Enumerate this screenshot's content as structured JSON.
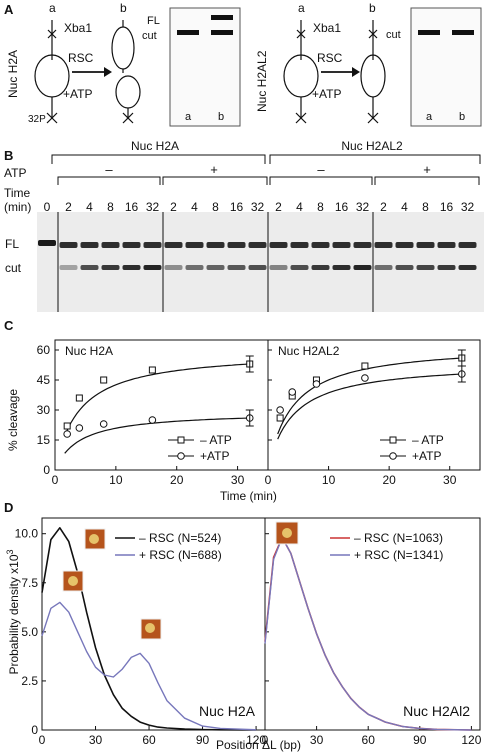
{
  "panels": {
    "A": {
      "letter": "A",
      "left": {
        "title": "Nuc H2A",
        "state_a": "a",
        "state_b": "b",
        "enzyme_top": "Xba1",
        "enzyme_mid": "RSC",
        "atp": "+ATP",
        "label_32p": "32P",
        "gel_fl": "FL",
        "gel_cut": "cut",
        "lane_a": "a",
        "lane_b": "b"
      },
      "right": {
        "title": "Nuc H2AL2",
        "state_a": "a",
        "state_b": "b",
        "enzyme_top": "Xba1",
        "enzyme_mid": "RSC",
        "atp": "+ATP",
        "gel_cut": "cut",
        "lane_a": "a",
        "lane_b": "b"
      }
    },
    "B": {
      "letter": "B",
      "group_left": "Nuc H2A",
      "group_right": "Nuc H2AL2",
      "atp_label": "ATP",
      "time_label": "Time",
      "time_unit": "(min)",
      "minus": "–",
      "plus": "+",
      "zero_time": "0",
      "times": [
        "2",
        "4",
        "8",
        "16",
        "32"
      ],
      "band_fl": "FL",
      "band_cut": "cut"
    },
    "C": {
      "letter": "C",
      "ylabel": "% cleavage",
      "xlabel": "Time (min)",
      "yticks": [
        "0",
        "15",
        "30",
        "45",
        "60"
      ],
      "xticks": [
        "0",
        "10",
        "20",
        "30"
      ],
      "legend_minus": "– ATP",
      "legend_plus": "+ATP"
    },
    "D": {
      "letter": "D",
      "ylabel": "Probability density x10",
      "ylabel_exp": "3",
      "xlabel": "Position  ΔL (bp)",
      "yticks": [
        "0",
        "2.5",
        "5.0",
        "7.5",
        "10.0"
      ],
      "xticks": [
        "0",
        "30",
        "60",
        "90",
        "120"
      ],
      "left_legend": [
        "– RSC (N=524)",
        "+ RSC (N=688)"
      ],
      "right_legend": [
        "– RSC (N=1063)",
        "+ RSC (N=1341)"
      ],
      "left_title": "Nuc H2A",
      "right_title": "Nuc H2Al2"
    }
  },
  "chart_data": [
    {
      "type": "scatter",
      "title": "Nuc H2A",
      "xlabel": "Time (min)",
      "ylabel": "% cleavage",
      "xlim": [
        0,
        35
      ],
      "ylim": [
        0,
        65
      ],
      "series": [
        {
          "name": "– ATP",
          "marker": "square",
          "x": [
            2,
            4,
            8,
            16,
            32
          ],
          "y": [
            22,
            36,
            45,
            50,
            53
          ]
        },
        {
          "name": "+ATP",
          "marker": "circle",
          "x": [
            2,
            4,
            8,
            16,
            32
          ],
          "y": [
            18,
            21,
            23,
            25,
            26
          ]
        }
      ]
    },
    {
      "type": "scatter",
      "title": "Nuc H2AL2",
      "xlabel": "Time (min)",
      "ylabel": "% cleavage",
      "xlim": [
        0,
        35
      ],
      "ylim": [
        0,
        65
      ],
      "series": [
        {
          "name": "– ATP",
          "marker": "square",
          "x": [
            2,
            4,
            8,
            16,
            32
          ],
          "y": [
            26,
            37,
            45,
            52,
            56
          ]
        },
        {
          "name": "+ATP",
          "marker": "circle",
          "x": [
            2,
            4,
            8,
            16,
            32
          ],
          "y": [
            30,
            39,
            43,
            46,
            48
          ]
        }
      ]
    },
    {
      "type": "line",
      "title": "Nuc H2A",
      "xlabel": "Position ΔL (bp)",
      "ylabel": "Probability density x10^3",
      "xlim": [
        0,
        125
      ],
      "ylim": [
        0,
        10.8
      ],
      "colors": {
        "minus": "#111111",
        "plus": "#7777bb"
      },
      "series": [
        {
          "name": "– RSC (N=524)",
          "x": [
            0,
            5,
            10,
            15,
            20,
            25,
            30,
            35,
            40,
            45,
            50,
            55,
            60,
            65,
            70,
            80,
            90,
            100,
            120
          ],
          "y": [
            7.0,
            9.7,
            10.3,
            9.6,
            8.0,
            6.0,
            4.2,
            2.8,
            1.8,
            1.1,
            0.7,
            0.4,
            0.25,
            0.15,
            0.1,
            0.05,
            0.02,
            0.01,
            0
          ]
        },
        {
          "name": "+ RSC (N=688)",
          "x": [
            0,
            5,
            10,
            15,
            20,
            25,
            30,
            35,
            40,
            45,
            50,
            55,
            60,
            65,
            70,
            80,
            90,
            100,
            120
          ],
          "y": [
            4.8,
            6.2,
            6.5,
            6.0,
            5.0,
            4.0,
            3.2,
            2.8,
            2.7,
            3.1,
            3.7,
            3.9,
            3.4,
            2.4,
            1.5,
            0.6,
            0.2,
            0.08,
            0.01
          ]
        }
      ]
    },
    {
      "type": "line",
      "title": "Nuc H2Al2",
      "xlabel": "Position ΔL (bp)",
      "ylabel": "Probability density x10^3",
      "xlim": [
        0,
        125
      ],
      "ylim": [
        0,
        10.8
      ],
      "colors": {
        "minus": "#cc3333",
        "plus": "#7777bb"
      },
      "series": [
        {
          "name": "– RSC (N=1063)",
          "x": [
            0,
            5,
            10,
            15,
            20,
            25,
            30,
            35,
            40,
            45,
            50,
            55,
            60,
            70,
            80,
            90,
            100,
            120
          ],
          "y": [
            4.5,
            8.8,
            9.8,
            9.0,
            7.6,
            6.2,
            4.9,
            3.8,
            2.9,
            2.2,
            1.6,
            1.15,
            0.8,
            0.4,
            0.18,
            0.08,
            0.03,
            0
          ]
        },
        {
          "name": "+ RSC (N=1341)",
          "x": [
            0,
            5,
            10,
            15,
            20,
            25,
            30,
            35,
            40,
            45,
            50,
            55,
            60,
            70,
            80,
            90,
            100,
            120
          ],
          "y": [
            4.4,
            8.7,
            9.8,
            9.0,
            7.6,
            6.2,
            4.9,
            3.8,
            2.9,
            2.2,
            1.6,
            1.15,
            0.8,
            0.4,
            0.18,
            0.08,
            0.03,
            0
          ]
        }
      ]
    }
  ]
}
